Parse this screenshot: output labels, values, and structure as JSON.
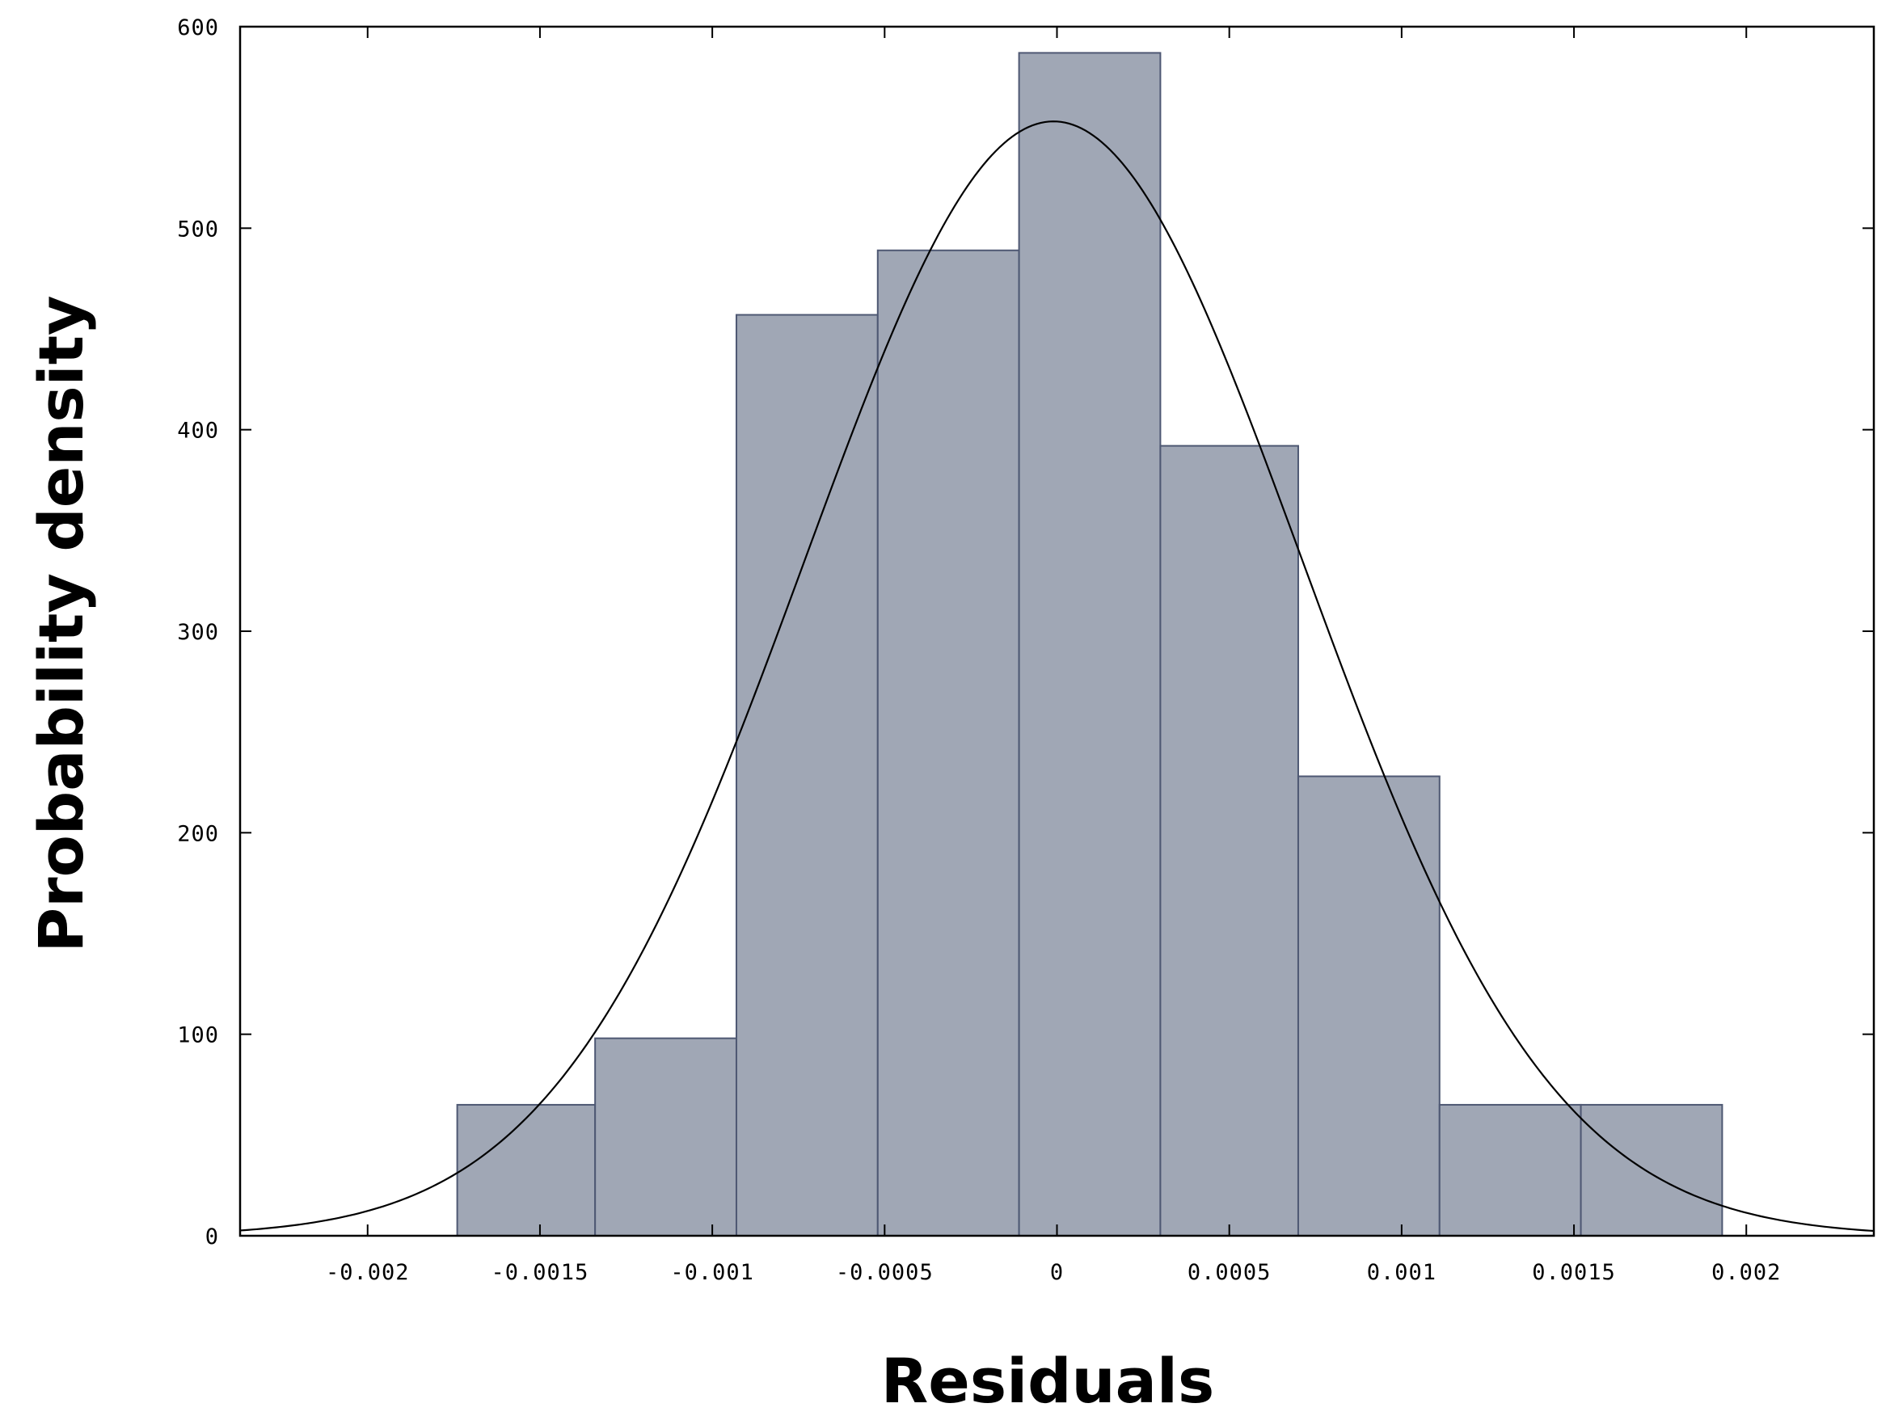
{
  "chart_data": {
    "type": "bar",
    "title": "",
    "xlabel": "Residuals",
    "ylabel": "Probability density",
    "xlim": [
      -0.00237,
      0.00237
    ],
    "ylim": [
      0,
      600
    ],
    "grid": false,
    "x_ticks": [
      {
        "value": -0.002,
        "label": "-0.002"
      },
      {
        "value": -0.0015,
        "label": "-0.0015"
      },
      {
        "value": -0.001,
        "label": "-0.001"
      },
      {
        "value": -0.0005,
        "label": "-0.0005"
      },
      {
        "value": 0,
        "label": "0"
      },
      {
        "value": 0.0005,
        "label": "0.0005"
      },
      {
        "value": 0.001,
        "label": "0.001"
      },
      {
        "value": 0.0015,
        "label": "0.0015"
      },
      {
        "value": 0.002,
        "label": "0.002"
      }
    ],
    "y_ticks": [
      {
        "value": 0,
        "label": "0"
      },
      {
        "value": 100,
        "label": "100"
      },
      {
        "value": 200,
        "label": "200"
      },
      {
        "value": 300,
        "label": "300"
      },
      {
        "value": 400,
        "label": "400"
      },
      {
        "value": 500,
        "label": "500"
      },
      {
        "value": 600,
        "label": "600"
      }
    ],
    "bins": [
      {
        "x0": -0.00174,
        "x1": -0.00134,
        "density": 65
      },
      {
        "x0": -0.00134,
        "x1": -0.00093,
        "density": 98
      },
      {
        "x0": -0.00093,
        "x1": -0.00052,
        "density": 457
      },
      {
        "x0": -0.00052,
        "x1": -0.00011,
        "density": 489
      },
      {
        "x0": -0.00011,
        "x1": 0.0003,
        "density": 587
      },
      {
        "x0": 0.0003,
        "x1": 0.0007,
        "density": 392
      },
      {
        "x0": 0.0007,
        "x1": 0.00111,
        "density": 228
      },
      {
        "x0": 0.00111,
        "x1": 0.00152,
        "density": 65
      },
      {
        "x0": 0.00152,
        "x1": 0.00193,
        "density": 65
      }
    ],
    "fit_curve": {
      "type": "normal",
      "mean": -1e-05,
      "peak": 553
    },
    "colors": {
      "bar_fill": "#a0a7b5",
      "bar_stroke": "#4e5873",
      "curve": "#000000",
      "axis": "#000000"
    }
  }
}
